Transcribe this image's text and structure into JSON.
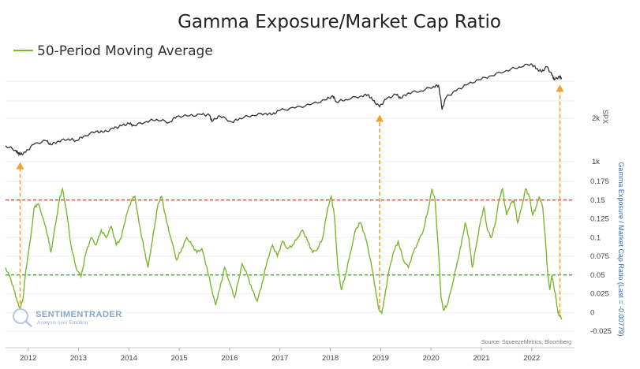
{
  "chart_data": {
    "type": "line",
    "title": "Gamma Exposure/Market Cap Ratio",
    "legend": "50-Period Moving Average",
    "x_tick_labels": [
      "2012",
      "2013",
      "2014",
      "2015",
      "2016",
      "2017",
      "2018",
      "2019",
      "2020",
      "2021",
      "2022"
    ],
    "x_range": [
      2011.55,
      2022.85
    ],
    "spx_axis": {
      "label": "SPX",
      "scale": "log",
      "ticks": [
        "2k",
        "1k"
      ],
      "tick_values": [
        2000,
        1000
      ],
      "series": {
        "name": "SPX",
        "points": [
          [
            2011.55,
            1290
          ],
          [
            2011.75,
            1200
          ],
          [
            2011.8,
            1150
          ],
          [
            2011.85,
            1120
          ],
          [
            2011.95,
            1160
          ],
          [
            2012.1,
            1310
          ],
          [
            2012.35,
            1400
          ],
          [
            2012.45,
            1310
          ],
          [
            2012.6,
            1390
          ],
          [
            2012.8,
            1440
          ],
          [
            2012.95,
            1400
          ],
          [
            2013.1,
            1500
          ],
          [
            2013.35,
            1620
          ],
          [
            2013.5,
            1600
          ],
          [
            2013.7,
            1700
          ],
          [
            2013.85,
            1770
          ],
          [
            2014.0,
            1840
          ],
          [
            2014.1,
            1780
          ],
          [
            2014.35,
            1900
          ],
          [
            2014.55,
            1970
          ],
          [
            2014.8,
            1870
          ],
          [
            2014.95,
            2060
          ],
          [
            2015.2,
            2080
          ],
          [
            2015.45,
            2120
          ],
          [
            2015.6,
            2100
          ],
          [
            2015.65,
            1900
          ],
          [
            2015.8,
            2080
          ],
          [
            2016.05,
            1880
          ],
          [
            2016.2,
            2000
          ],
          [
            2016.45,
            2100
          ],
          [
            2016.7,
            2160
          ],
          [
            2016.85,
            2130
          ],
          [
            2017.0,
            2270
          ],
          [
            2017.3,
            2360
          ],
          [
            2017.6,
            2480
          ],
          [
            2017.9,
            2680
          ],
          [
            2018.05,
            2860
          ],
          [
            2018.12,
            2600
          ],
          [
            2018.3,
            2700
          ],
          [
            2018.6,
            2850
          ],
          [
            2018.75,
            2920
          ],
          [
            2018.85,
            2650
          ],
          [
            2018.98,
            2400
          ],
          [
            2019.1,
            2700
          ],
          [
            2019.3,
            2930
          ],
          [
            2019.4,
            2760
          ],
          [
            2019.55,
            3000
          ],
          [
            2019.8,
            3100
          ],
          [
            2020.05,
            3330
          ],
          [
            2020.15,
            3380
          ],
          [
            2020.22,
            2300
          ],
          [
            2020.3,
            2800
          ],
          [
            2020.5,
            3100
          ],
          [
            2020.7,
            3400
          ],
          [
            2020.95,
            3700
          ],
          [
            2021.2,
            3950
          ],
          [
            2021.5,
            4300
          ],
          [
            2021.75,
            4550
          ],
          [
            2021.99,
            4780
          ],
          [
            2022.1,
            4400
          ],
          [
            2022.2,
            4200
          ],
          [
            2022.3,
            4550
          ],
          [
            2022.4,
            4000
          ],
          [
            2022.45,
            3700
          ],
          [
            2022.55,
            3900
          ],
          [
            2022.6,
            3800
          ]
        ]
      }
    },
    "ratio_axis": {
      "label": "Gamma Exposure / Market Cap Ratio (Last = -0.00779)",
      "ticks": [
        "0.175",
        "0.15",
        "0.125",
        "0.1",
        "0.075",
        "0.05",
        "0.025",
        "0",
        "-0.025"
      ],
      "tick_values": [
        0.175,
        0.15,
        0.125,
        0.1,
        0.075,
        0.05,
        0.025,
        0,
        -0.025
      ],
      "ylim": [
        -0.025,
        0.175
      ]
    },
    "series": [
      {
        "name": "50-Period Moving Average",
        "color": "#7cb82f",
        "points": [
          [
            2011.55,
            0.06
          ],
          [
            2011.65,
            0.045
          ],
          [
            2011.72,
            0.03
          ],
          [
            2011.78,
            0.015
          ],
          [
            2011.84,
            0.005
          ],
          [
            2011.9,
            0.02
          ],
          [
            2011.95,
            0.055
          ],
          [
            2012.05,
            0.1
          ],
          [
            2012.12,
            0.14
          ],
          [
            2012.2,
            0.145
          ],
          [
            2012.3,
            0.125
          ],
          [
            2012.4,
            0.1
          ],
          [
            2012.45,
            0.08
          ],
          [
            2012.55,
            0.12
          ],
          [
            2012.62,
            0.15
          ],
          [
            2012.68,
            0.165
          ],
          [
            2012.75,
            0.14
          ],
          [
            2012.85,
            0.09
          ],
          [
            2012.95,
            0.06
          ],
          [
            2013.05,
            0.048
          ],
          [
            2013.15,
            0.08
          ],
          [
            2013.25,
            0.1
          ],
          [
            2013.35,
            0.09
          ],
          [
            2013.45,
            0.11
          ],
          [
            2013.55,
            0.1
          ],
          [
            2013.65,
            0.115
          ],
          [
            2013.75,
            0.09
          ],
          [
            2013.85,
            0.1
          ],
          [
            2013.95,
            0.13
          ],
          [
            2014.05,
            0.15
          ],
          [
            2014.12,
            0.155
          ],
          [
            2014.2,
            0.12
          ],
          [
            2014.3,
            0.085
          ],
          [
            2014.38,
            0.06
          ],
          [
            2014.45,
            0.09
          ],
          [
            2014.52,
            0.12
          ],
          [
            2014.58,
            0.145
          ],
          [
            2014.65,
            0.155
          ],
          [
            2014.75,
            0.12
          ],
          [
            2014.85,
            0.095
          ],
          [
            2014.95,
            0.07
          ],
          [
            2015.05,
            0.085
          ],
          [
            2015.15,
            0.1
          ],
          [
            2015.25,
            0.09
          ],
          [
            2015.35,
            0.08
          ],
          [
            2015.45,
            0.085
          ],
          [
            2015.55,
            0.06
          ],
          [
            2015.65,
            0.03
          ],
          [
            2015.72,
            0.01
          ],
          [
            2015.8,
            0.03
          ],
          [
            2015.9,
            0.06
          ],
          [
            2016.0,
            0.04
          ],
          [
            2016.1,
            0.02
          ],
          [
            2016.2,
            0.05
          ],
          [
            2016.25,
            0.065
          ],
          [
            2016.35,
            0.05
          ],
          [
            2016.45,
            0.03
          ],
          [
            2016.55,
            0.015
          ],
          [
            2016.65,
            0.04
          ],
          [
            2016.75,
            0.07
          ],
          [
            2016.85,
            0.09
          ],
          [
            2016.95,
            0.075
          ],
          [
            2017.05,
            0.095
          ],
          [
            2017.15,
            0.085
          ],
          [
            2017.25,
            0.09
          ],
          [
            2017.35,
            0.1
          ],
          [
            2017.45,
            0.11
          ],
          [
            2017.55,
            0.095
          ],
          [
            2017.65,
            0.08
          ],
          [
            2017.75,
            0.085
          ],
          [
            2017.85,
            0.1
          ],
          [
            2017.95,
            0.14
          ],
          [
            2018.02,
            0.155
          ],
          [
            2018.08,
            0.13
          ],
          [
            2018.15,
            0.06
          ],
          [
            2018.22,
            0.03
          ],
          [
            2018.3,
            0.05
          ],
          [
            2018.4,
            0.08
          ],
          [
            2018.5,
            0.11
          ],
          [
            2018.6,
            0.12
          ],
          [
            2018.7,
            0.1
          ],
          [
            2018.8,
            0.07
          ],
          [
            2018.9,
            0.03
          ],
          [
            2018.96,
            0.005
          ],
          [
            2019.02,
            -0.002
          ],
          [
            2019.08,
            0.02
          ],
          [
            2019.15,
            0.05
          ],
          [
            2019.25,
            0.08
          ],
          [
            2019.35,
            0.095
          ],
          [
            2019.45,
            0.07
          ],
          [
            2019.55,
            0.06
          ],
          [
            2019.65,
            0.08
          ],
          [
            2019.75,
            0.095
          ],
          [
            2019.85,
            0.11
          ],
          [
            2019.95,
            0.14
          ],
          [
            2020.02,
            0.165
          ],
          [
            2020.08,
            0.15
          ],
          [
            2020.15,
            0.08
          ],
          [
            2020.2,
            0.02
          ],
          [
            2020.25,
            0.003
          ],
          [
            2020.32,
            0.01
          ],
          [
            2020.4,
            0.03
          ],
          [
            2020.5,
            0.06
          ],
          [
            2020.6,
            0.09
          ],
          [
            2020.68,
            0.12
          ],
          [
            2020.75,
            0.1
          ],
          [
            2020.82,
            0.06
          ],
          [
            2020.9,
            0.09
          ],
          [
            2020.98,
            0.12
          ],
          [
            2021.05,
            0.14
          ],
          [
            2021.12,
            0.11
          ],
          [
            2021.2,
            0.1
          ],
          [
            2021.28,
            0.12
          ],
          [
            2021.35,
            0.15
          ],
          [
            2021.42,
            0.165
          ],
          [
            2021.5,
            0.13
          ],
          [
            2021.58,
            0.145
          ],
          [
            2021.65,
            0.15
          ],
          [
            2021.72,
            0.12
          ],
          [
            2021.8,
            0.14
          ],
          [
            2021.88,
            0.165
          ],
          [
            2021.95,
            0.155
          ],
          [
            2022.02,
            0.13
          ],
          [
            2022.08,
            0.14
          ],
          [
            2022.15,
            0.155
          ],
          [
            2022.22,
            0.14
          ],
          [
            2022.28,
            0.09
          ],
          [
            2022.32,
            0.05
          ],
          [
            2022.36,
            0.03
          ],
          [
            2022.4,
            0.05
          ],
          [
            2022.44,
            0.035
          ],
          [
            2022.48,
            0.02
          ],
          [
            2022.52,
            0.0
          ],
          [
            2022.56,
            -0.005
          ],
          [
            2022.6,
            -0.00779
          ]
        ]
      }
    ],
    "reference_lines": [
      {
        "value": 0.15,
        "color": "#d9332b",
        "style": "dashed"
      },
      {
        "value": 0.05,
        "color": "#3a9a2f",
        "style": "dashed"
      }
    ],
    "annotations": [
      {
        "type": "arrow",
        "x": 2011.84,
        "color": "#f0a22e",
        "direction": "up"
      },
      {
        "type": "arrow",
        "x": 2018.98,
        "color": "#f0a22e",
        "direction": "up"
      },
      {
        "type": "arrow",
        "x": 2022.56,
        "color": "#f0a22e",
        "direction": "up"
      }
    ],
    "source": "Source: SqueezeMetrics, Bloomberg",
    "watermark": {
      "brand": "SENTIMENTRADER",
      "tagline": "Analysis over Emotion"
    },
    "grid": "horizontal",
    "legend_position": "top-left"
  }
}
